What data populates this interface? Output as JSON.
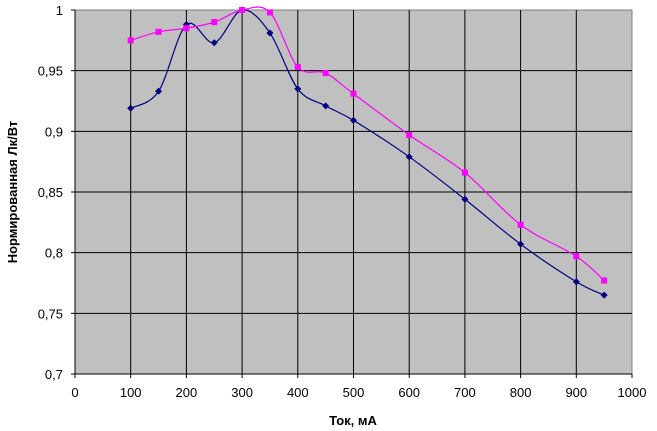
{
  "chart_data": {
    "type": "line",
    "title": "",
    "xlabel": "Ток, мА",
    "ylabel": "Нормированная Лк/Вт",
    "xlim": [
      0,
      1000
    ],
    "ylim": [
      0.7,
      1.0
    ],
    "x_ticks": [
      0,
      100,
      200,
      300,
      400,
      500,
      600,
      700,
      800,
      900,
      1000
    ],
    "y_ticks": [
      0.7,
      0.75,
      0.8,
      0.85,
      0.9,
      0.95,
      1.0
    ],
    "y_tick_labels": [
      "0,7",
      "0,75",
      "0,8",
      "0,85",
      "0,9",
      "0,95",
      "1"
    ],
    "grid": true,
    "plot_background": "#c0c0c0",
    "series": [
      {
        "color": "#000080",
        "marker": "diamond",
        "points": [
          [
            100,
            0.919
          ],
          [
            150,
            0.933
          ],
          [
            200,
            0.988
          ],
          [
            250,
            0.973
          ],
          [
            300,
            1.0
          ],
          [
            350,
            0.981
          ],
          [
            400,
            0.935
          ],
          [
            450,
            0.921
          ],
          [
            500,
            0.909
          ],
          [
            600,
            0.879
          ],
          [
            700,
            0.844
          ],
          [
            800,
            0.807
          ],
          [
            900,
            0.776
          ],
          [
            950,
            0.765
          ]
        ]
      },
      {
        "color": "#ff00ff",
        "marker": "square",
        "points": [
          [
            100,
            0.975
          ],
          [
            150,
            0.982
          ],
          [
            200,
            0.985
          ],
          [
            250,
            0.99
          ],
          [
            300,
            1.0
          ],
          [
            350,
            0.998
          ],
          [
            400,
            0.953
          ],
          [
            450,
            0.948
          ],
          [
            500,
            0.931
          ],
          [
            600,
            0.897
          ],
          [
            700,
            0.866
          ],
          [
            800,
            0.823
          ],
          [
            900,
            0.797
          ],
          [
            950,
            0.777
          ]
        ]
      }
    ]
  }
}
